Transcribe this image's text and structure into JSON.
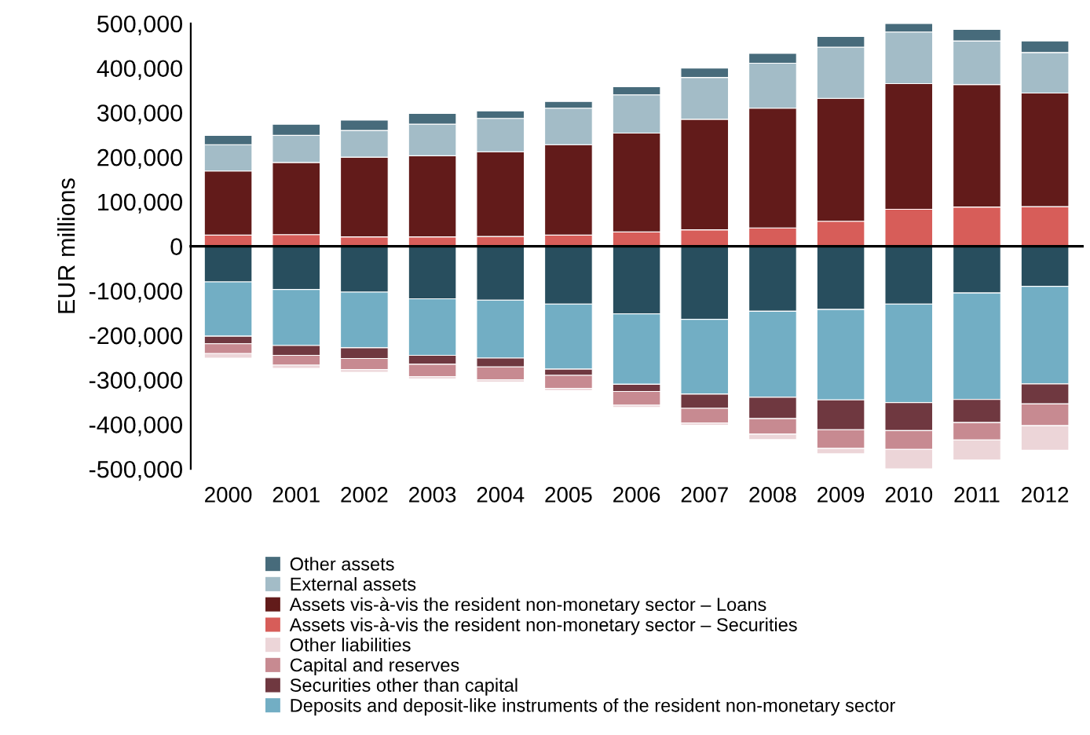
{
  "chart_data": {
    "type": "bar",
    "stacked": true,
    "ylabel": "EUR millions",
    "categories": [
      "2000",
      "2001",
      "2002",
      "2003",
      "2004",
      "2005",
      "2006",
      "2007",
      "2008",
      "2009",
      "2010",
      "2011",
      "2012"
    ],
    "ylim": [
      -500000,
      500000
    ],
    "yticks": [
      {
        "value": -500000,
        "label": "-500,000"
      },
      {
        "value": -400000,
        "label": "-400,000"
      },
      {
        "value": -300000,
        "label": "-300,000"
      },
      {
        "value": -200000,
        "label": "-200,000"
      },
      {
        "value": -100000,
        "label": "-100,000"
      },
      0,
      {
        "value": 100000,
        "label": "100,000"
      },
      {
        "value": 200000,
        "label": "200,000"
      },
      {
        "value": 300000,
        "label": "300,000"
      },
      {
        "value": 400000,
        "label": "400,000"
      },
      {
        "value": 500000,
        "label": "500,000"
      }
    ],
    "legend": "bottom",
    "series": [
      {
        "name": "Assets vis-à-vis the resident non-monetary sector – Securities",
        "color": "#d75d59",
        "values": [
          25000,
          26000,
          21000,
          21000,
          22000,
          25000,
          32000,
          37000,
          41000,
          56000,
          83000,
          88000,
          89000
        ]
      },
      {
        "name": "Assets vis-à-vis the resident non-monetary sector – Loans",
        "color": "#621b1a",
        "values": [
          144000,
          162000,
          179000,
          182000,
          190000,
          203000,
          222000,
          248000,
          269000,
          276000,
          282000,
          275000,
          255000
        ]
      },
      {
        "name": "External assets",
        "color": "#a3bcc7",
        "values": [
          59000,
          61000,
          60000,
          71000,
          75000,
          82000,
          86000,
          94000,
          101000,
          115000,
          116000,
          98000,
          91000
        ]
      },
      {
        "name": "Other assets",
        "color": "#476b7b",
        "values": [
          21000,
          25000,
          23000,
          24000,
          17000,
          15000,
          18000,
          21000,
          22000,
          24000,
          19000,
          26000,
          26000
        ]
      },
      {
        "color": "#284e5e",
        "values": [
          -80000,
          -97000,
          -103000,
          -118000,
          -121000,
          -130000,
          -152000,
          -164000,
          -146000,
          -142000,
          -130000,
          -105000,
          -90000
        ]
      },
      {
        "name": "Deposits and deposit-like instruments of the resident non-monetary sector",
        "color": "#72aec4",
        "values": [
          -122000,
          -126000,
          -125000,
          -127000,
          -130000,
          -146000,
          -158000,
          -168000,
          -193000,
          -203000,
          -221000,
          -239000,
          -219000
        ]
      },
      {
        "name": "Securities other than capital",
        "color": "#6f3840",
        "values": [
          -17000,
          -22000,
          -24000,
          -20000,
          -20000,
          -14000,
          -16000,
          -32000,
          -48000,
          -67000,
          -63000,
          -52000,
          -45000
        ]
      },
      {
        "name": "Capital and reserves",
        "color": "#c78a91",
        "values": [
          -22000,
          -22000,
          -25000,
          -28000,
          -29000,
          -29000,
          -31000,
          -33000,
          -35000,
          -42000,
          -42000,
          -39000,
          -49000
        ]
      },
      {
        "name": "Other liabilities",
        "color": "#ecd5d8",
        "values": [
          -10000,
          -7000,
          -6000,
          -5000,
          -5000,
          -5000,
          -5000,
          -5000,
          -12000,
          -12000,
          -44000,
          -45000,
          -55000
        ]
      }
    ]
  }
}
